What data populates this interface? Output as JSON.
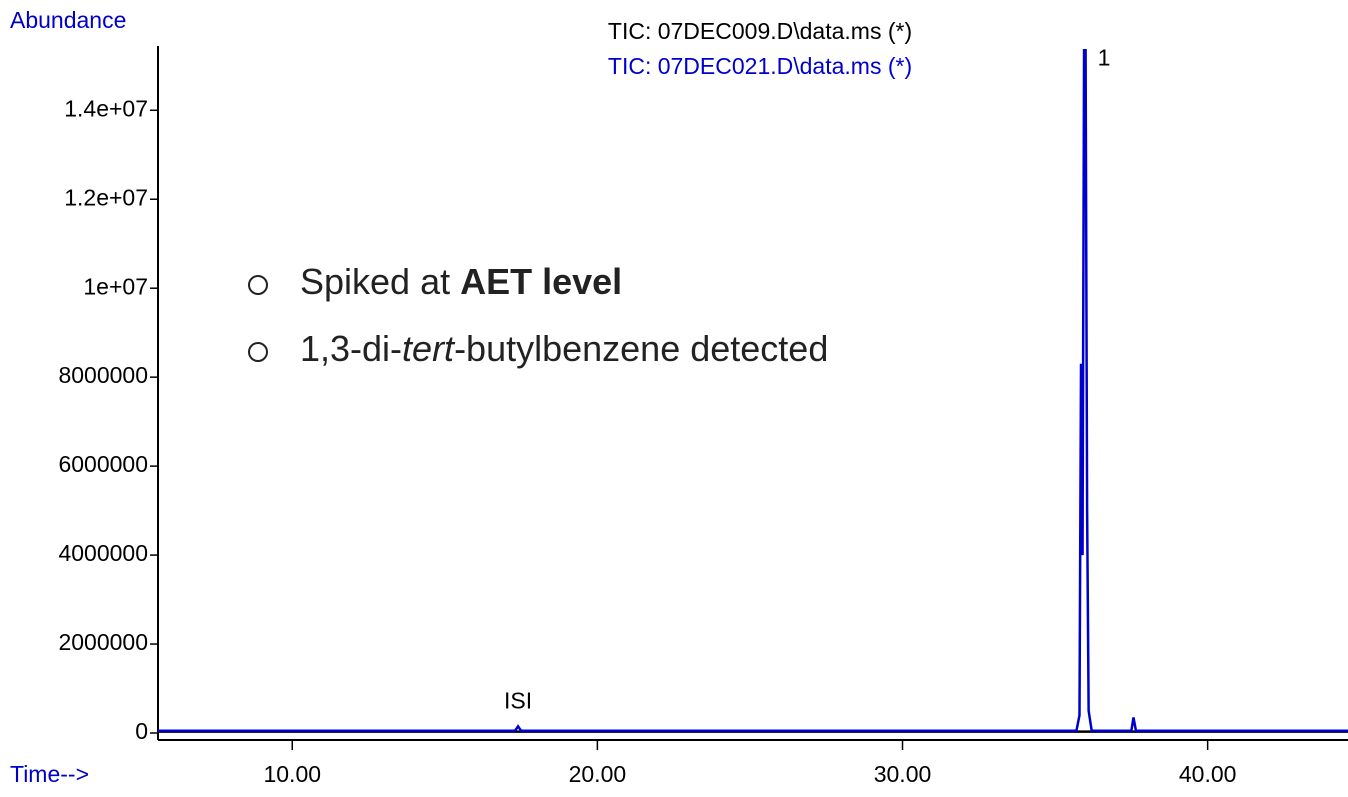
{
  "chart_data": {
    "type": "line",
    "y_label": "Abundance",
    "x_label": "Time-->",
    "xlim": [
      5.6,
      44.6
    ],
    "ylim": [
      0,
      15400000
    ],
    "xticks": [
      {
        "value": 10,
        "label": "10.00"
      },
      {
        "value": 20,
        "label": "20.00"
      },
      {
        "value": 30,
        "label": "30.00"
      },
      {
        "value": 40,
        "label": "40.00"
      }
    ],
    "yticks": [
      0,
      2000000,
      4000000,
      6000000,
      8000000,
      {
        "value": 10000000,
        "label": "1e+07"
      },
      {
        "value": 12000000,
        "label": "1.2e+07"
      },
      {
        "value": 14000000,
        "label": "1.4e+07"
      }
    ],
    "series": [
      {
        "name": "TIC: 07DEC009.D\\data.ms (*)",
        "color": "#000000",
        "x": [
          5.6,
          44.6
        ],
        "values": [
          30000,
          30000
        ]
      },
      {
        "name": "TIC: 07DEC021.D\\data.ms (*)",
        "color": "#0000cc",
        "x": [
          5.6,
          17.3,
          17.4,
          17.5,
          35.7,
          35.8,
          35.85,
          35.9,
          35.95,
          36.0,
          36.05,
          36.1,
          36.2,
          37.5,
          37.57,
          37.65,
          44.6
        ],
        "values": [
          50000,
          50000,
          150000,
          50000,
          50000,
          400000,
          8300000,
          4000000,
          15350000,
          15350000,
          5000000,
          500000,
          50000,
          50000,
          350000,
          50000,
          50000
        ]
      }
    ],
    "annotations": [
      {
        "text": "ISI",
        "x": 17.4,
        "y": 150000
      },
      {
        "text": "1",
        "x": 36.0,
        "y": 14600000
      }
    ],
    "bullets": [
      [
        "Spiked at ",
        "AET level"
      ],
      [
        "1,3-di-",
        "tert",
        "-butylbenzene detected"
      ]
    ]
  }
}
